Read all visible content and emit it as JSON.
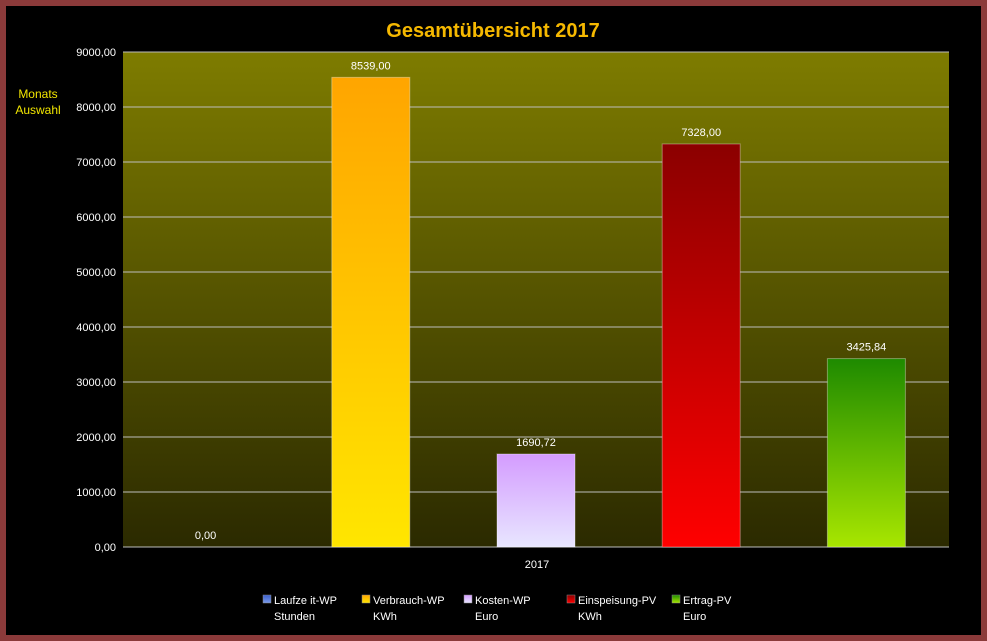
{
  "side_button": {
    "line1": "Monats",
    "line2": "Auswahl"
  },
  "colors": {
    "frame": "#8b3a3a",
    "title": "#f5b800",
    "side_button": "#f2e600",
    "plot_top": "#7e7c00",
    "plot_bottom": "#2b2a00",
    "axis_text": "#ffffff"
  },
  "chart_data": {
    "type": "bar",
    "title": "Gesamtübersicht  2017",
    "xlabel": "",
    "ylabel": "",
    "categories": [
      "2017"
    ],
    "ylim": [
      0,
      9000
    ],
    "yticks": [
      "0,00",
      "1000,00",
      "2000,00",
      "3000,00",
      "4000,00",
      "5000,00",
      "6000,00",
      "7000,00",
      "8000,00",
      "9000,00"
    ],
    "grid": true,
    "legend_position": "bottom",
    "series": [
      {
        "name": "Laufze it-WP",
        "unit": "Stunden",
        "value": 0,
        "label": "0,00",
        "color_top": "#3a5fcd",
        "color_bottom": "#7a9ae8"
      },
      {
        "name": "Verbrauch-WP",
        "unit": "KWh",
        "value": 8539,
        "label": "8539,00",
        "color_top": "#ffa500",
        "color_bottom": "#ffe600"
      },
      {
        "name": "Kosten-WP",
        "unit": "Euro",
        "value": 1690.72,
        "label": "1690,72",
        "color_top": "#d49cff",
        "color_bottom": "#e8e6ff"
      },
      {
        "name": "Einspeisung-PV",
        "unit": "KWh",
        "value": 7328,
        "label": "7328,00",
        "color_top": "#8b0000",
        "color_bottom": "#ff0000"
      },
      {
        "name": "Ertrag-PV",
        "unit": "Euro",
        "value": 3425.84,
        "label": "3425,84",
        "color_top": "#1e8a00",
        "color_bottom": "#a8e600"
      }
    ]
  }
}
